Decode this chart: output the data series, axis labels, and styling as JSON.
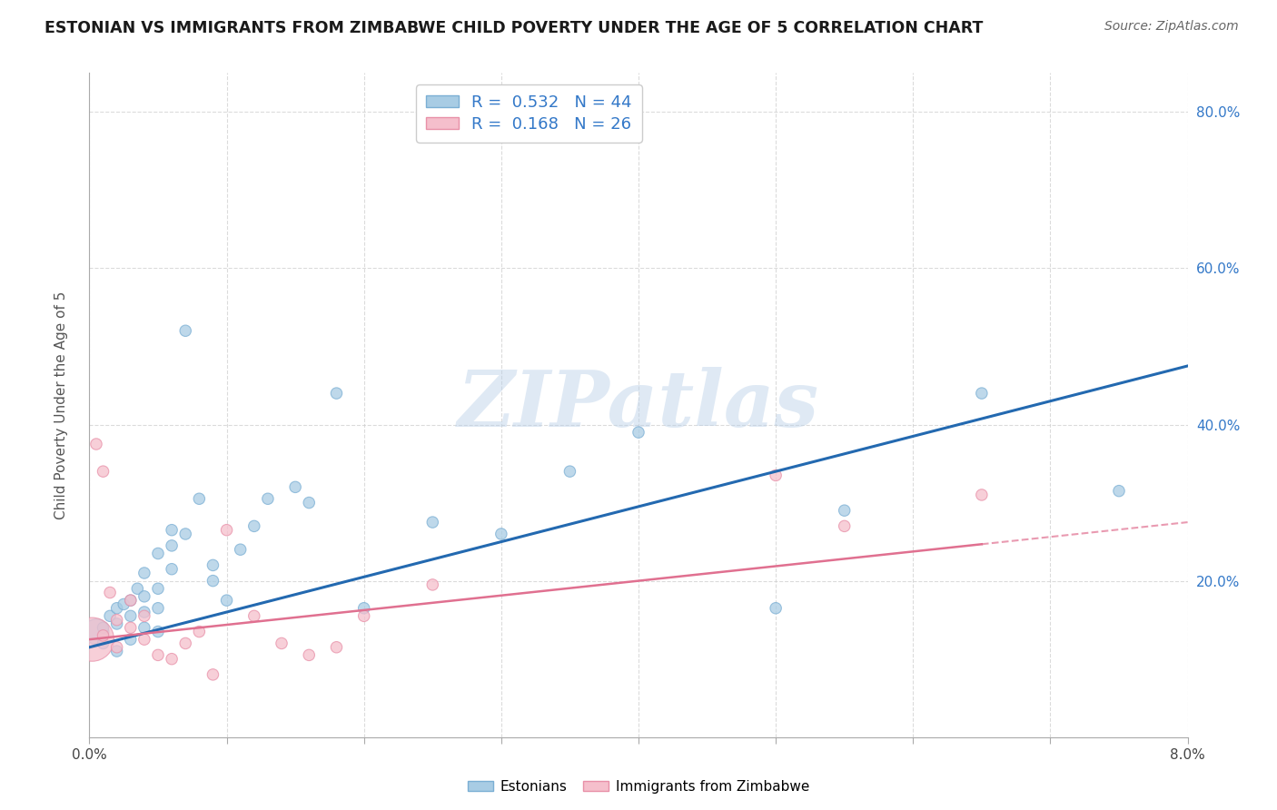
{
  "title": "ESTONIAN VS IMMIGRANTS FROM ZIMBABWE CHILD POVERTY UNDER THE AGE OF 5 CORRELATION CHART",
  "source": "Source: ZipAtlas.com",
  "ylabel": "Child Poverty Under the Age of 5",
  "estonian_R": 0.532,
  "estonian_N": 44,
  "zimbabwe_R": 0.168,
  "zimbabwe_N": 26,
  "estonian_color": "#a8cce4",
  "estonian_edge_color": "#7bafd4",
  "zimbabwe_color": "#f5bfcc",
  "zimbabwe_edge_color": "#e890a8",
  "estonian_line_color": "#2369b0",
  "zimbabwe_line_color": "#e07090",
  "legend_text_color": "#3378c8",
  "background_color": "#ffffff",
  "grid_color": "#cccccc",
  "watermark": "ZIPatlas",
  "watermark_color_zip": "#b8cfe8",
  "watermark_color_atlas": "#b8cfe8",
  "xlim": [
    0.0,
    0.08
  ],
  "ylim": [
    0.0,
    0.85
  ],
  "estonian_line_x0": 0.0,
  "estonian_line_y0": 0.115,
  "estonian_line_x1": 0.08,
  "estonian_line_y1": 0.475,
  "zimbabwe_line_x0": 0.0,
  "zimbabwe_line_y0": 0.125,
  "zimbabwe_line_x1": 0.08,
  "zimbabwe_line_y1": 0.275,
  "estonian_x": [
    0.0005,
    0.001,
    0.001,
    0.0015,
    0.002,
    0.002,
    0.002,
    0.0025,
    0.003,
    0.003,
    0.003,
    0.0035,
    0.004,
    0.004,
    0.004,
    0.004,
    0.005,
    0.005,
    0.005,
    0.005,
    0.006,
    0.006,
    0.006,
    0.007,
    0.007,
    0.008,
    0.009,
    0.009,
    0.01,
    0.011,
    0.012,
    0.013,
    0.015,
    0.016,
    0.018,
    0.02,
    0.025,
    0.03,
    0.035,
    0.04,
    0.05,
    0.055,
    0.065,
    0.075
  ],
  "estonian_y": [
    0.135,
    0.14,
    0.12,
    0.155,
    0.165,
    0.145,
    0.11,
    0.17,
    0.175,
    0.155,
    0.125,
    0.19,
    0.21,
    0.18,
    0.16,
    0.14,
    0.235,
    0.19,
    0.165,
    0.135,
    0.265,
    0.245,
    0.215,
    0.26,
    0.52,
    0.305,
    0.2,
    0.22,
    0.175,
    0.24,
    0.27,
    0.305,
    0.32,
    0.3,
    0.44,
    0.165,
    0.275,
    0.26,
    0.34,
    0.39,
    0.165,
    0.29,
    0.44,
    0.315
  ],
  "estonian_size": [
    400,
    80,
    80,
    80,
    80,
    80,
    80,
    80,
    80,
    80,
    80,
    80,
    80,
    80,
    80,
    80,
    80,
    80,
    80,
    80,
    80,
    80,
    80,
    80,
    80,
    80,
    80,
    80,
    80,
    80,
    80,
    80,
    80,
    80,
    80,
    80,
    80,
    80,
    80,
    80,
    80,
    80,
    80,
    80
  ],
  "zimbabwe_x": [
    0.0002,
    0.0005,
    0.001,
    0.001,
    0.0015,
    0.002,
    0.002,
    0.003,
    0.003,
    0.004,
    0.004,
    0.005,
    0.006,
    0.007,
    0.008,
    0.009,
    0.01,
    0.012,
    0.014,
    0.016,
    0.018,
    0.02,
    0.025,
    0.05,
    0.055,
    0.065
  ],
  "zimbabwe_y": [
    0.125,
    0.375,
    0.34,
    0.13,
    0.185,
    0.15,
    0.115,
    0.14,
    0.175,
    0.155,
    0.125,
    0.105,
    0.1,
    0.12,
    0.135,
    0.08,
    0.265,
    0.155,
    0.12,
    0.105,
    0.115,
    0.155,
    0.195,
    0.335,
    0.27,
    0.31
  ],
  "zimbabwe_size": [
    1200,
    80,
    80,
    80,
    80,
    80,
    80,
    80,
    80,
    80,
    80,
    80,
    80,
    80,
    80,
    80,
    80,
    80,
    80,
    80,
    80,
    80,
    80,
    80,
    80,
    80
  ]
}
